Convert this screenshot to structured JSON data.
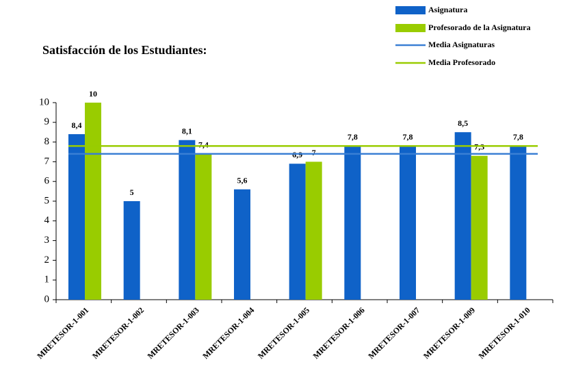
{
  "chart_data": {
    "type": "bar",
    "title": "Satisfacción de los Estudiantes:",
    "categories": [
      "MRETESOR-1-001",
      "MRETESOR-1-002",
      "MRETESOR-1-003",
      "MRETESOR-1-004",
      "MRETESOR-1-005",
      "MRETESOR-1-006",
      "MRETESOR-1-007",
      "MRETESOR-1-009",
      "MRETESOR-1-010"
    ],
    "series": [
      {
        "name": "Asignatura",
        "color": "#0f62c8",
        "values": [
          8.4,
          5,
          8.1,
          5.6,
          6.9,
          7.8,
          7.8,
          8.5,
          7.8
        ],
        "value_labels": [
          "8,4",
          "5",
          "8,1",
          "5,6",
          "6,9",
          "7,8",
          "7,8",
          "8,5",
          "7,8"
        ]
      },
      {
        "name": "Profesorado de la Asignatura",
        "color": "#99cc00",
        "values": [
          10,
          null,
          7.4,
          null,
          7,
          null,
          null,
          7.3,
          null
        ],
        "value_labels": [
          "10",
          null,
          "7,4",
          null,
          "7",
          null,
          null,
          "7,3",
          null
        ]
      }
    ],
    "lines": [
      {
        "name": "Media Asignaturas",
        "color": "#3a7fd4",
        "value": 7.4
      },
      {
        "name": "Media Profesorado",
        "color": "#99cc00",
        "value": 7.8
      }
    ],
    "ylim": [
      0,
      10
    ],
    "yticks": [
      0,
      1,
      2,
      3,
      4,
      5,
      6,
      7,
      8,
      9,
      10
    ],
    "grid": false
  }
}
